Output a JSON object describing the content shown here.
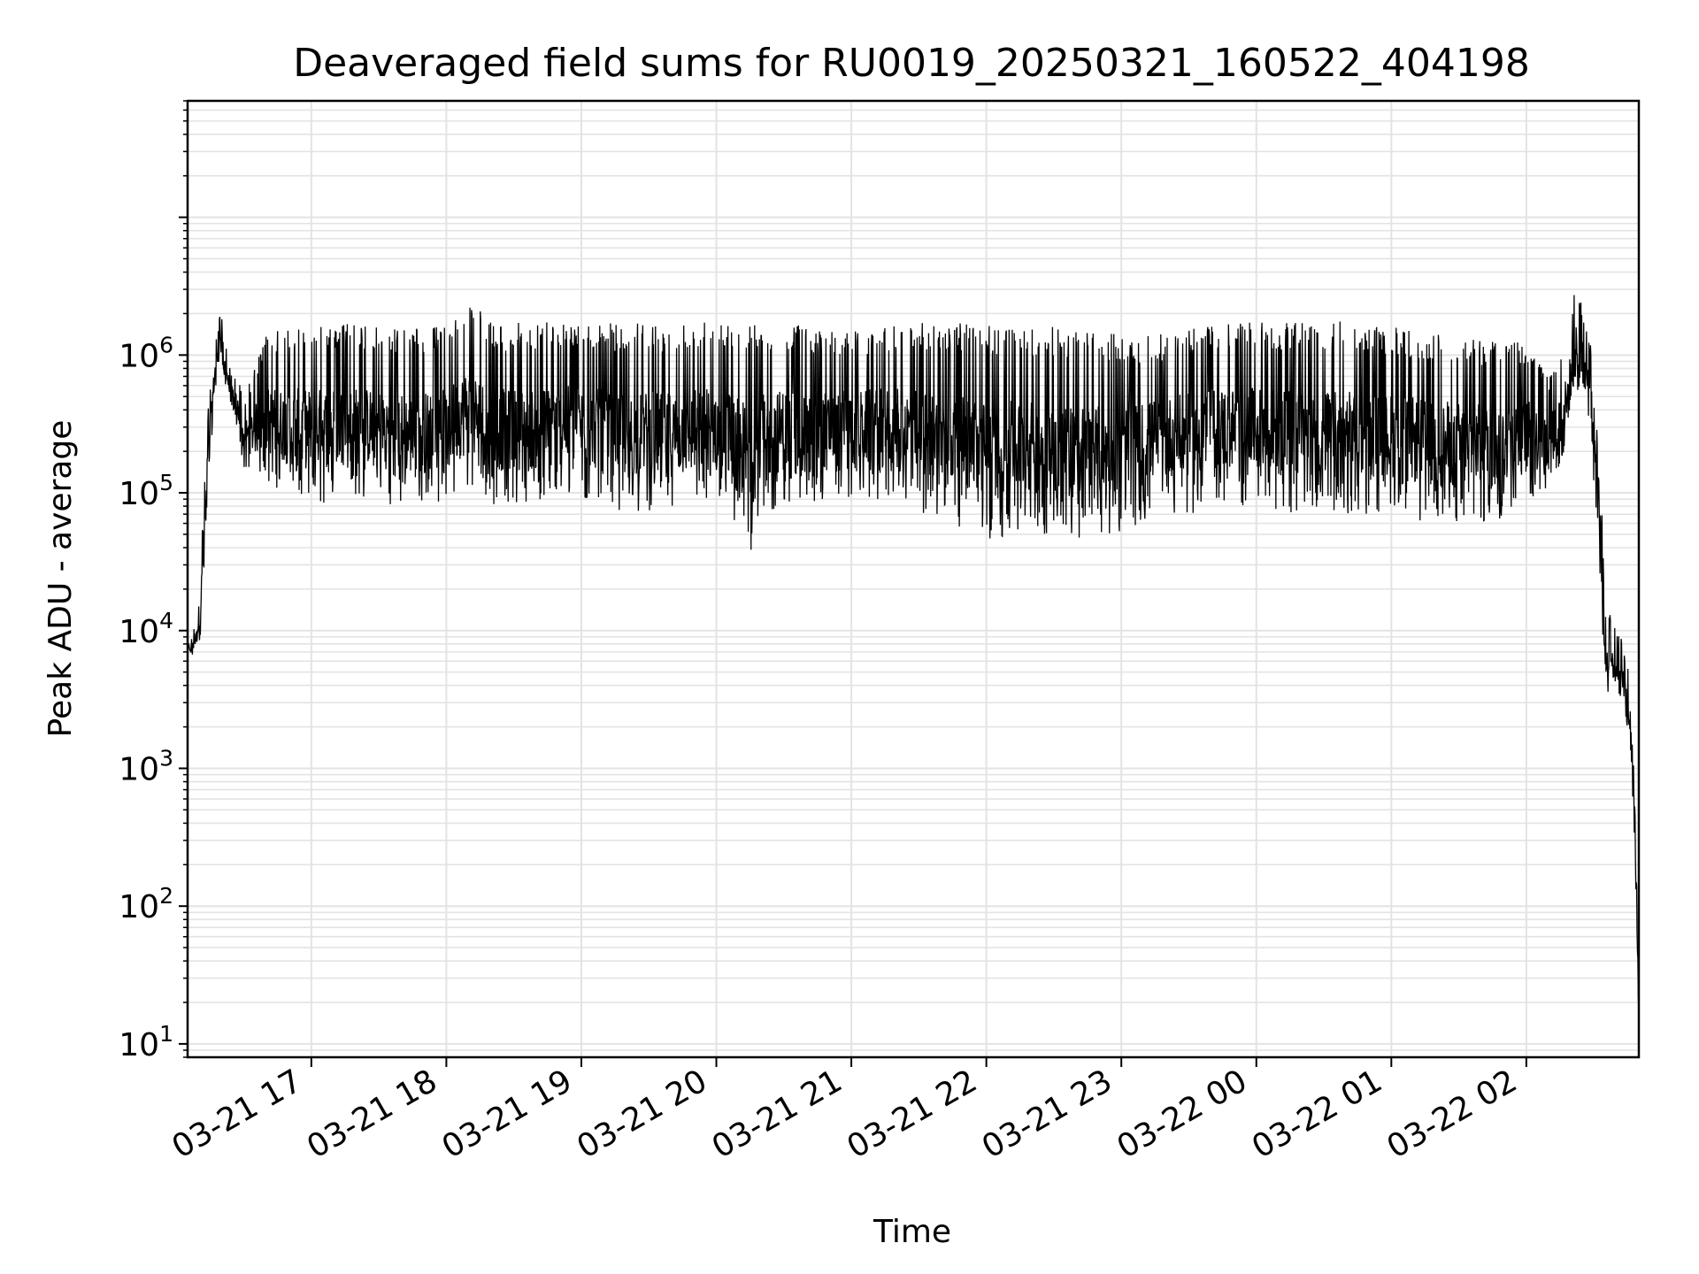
{
  "chart_data": {
    "type": "line",
    "title": "Deaveraged field sums for RU0019_20250321_160522_404198",
    "xlabel": "Time",
    "ylabel": "Peak ADU - average",
    "yscale": "log",
    "ylim": [
      8,
      70000000
    ],
    "xlim": [
      "2025-03-21 16:05",
      "2025-03-22 02:50"
    ],
    "grid": true,
    "line_color": "#000000",
    "grid_color": "#e3e3e3",
    "x_ticks": [
      {
        "value": "2025-03-21 17:00",
        "label": "03-21 17"
      },
      {
        "value": "2025-03-21 18:00",
        "label": "03-21 18"
      },
      {
        "value": "2025-03-21 19:00",
        "label": "03-21 19"
      },
      {
        "value": "2025-03-21 20:00",
        "label": "03-21 20"
      },
      {
        "value": "2025-03-21 21:00",
        "label": "03-21 21"
      },
      {
        "value": "2025-03-21 22:00",
        "label": "03-21 22"
      },
      {
        "value": "2025-03-21 23:00",
        "label": "03-21 23"
      },
      {
        "value": "2025-03-22 00:00",
        "label": "03-22 00"
      },
      {
        "value": "2025-03-22 01:00",
        "label": "03-22 01"
      },
      {
        "value": "2025-03-22 02:00",
        "label": "03-22 02"
      }
    ],
    "y_ticks": [
      {
        "value": 10,
        "base": "10",
        "exp": "1"
      },
      {
        "value": 100,
        "base": "10",
        "exp": "2"
      },
      {
        "value": 1000,
        "base": "10",
        "exp": "3"
      },
      {
        "value": 10000,
        "base": "10",
        "exp": "4"
      },
      {
        "value": 100000,
        "base": "10",
        "exp": "5"
      },
      {
        "value": 1000000,
        "base": "10",
        "exp": "6"
      }
    ],
    "series": [
      {
        "type": "envelope",
        "x": [
          "2025-03-21 16:05",
          "2025-03-21 16:07",
          "2025-03-21 16:09",
          "2025-03-21 16:11",
          "2025-03-21 16:14",
          "2025-03-21 16:17",
          "2025-03-21 16:20",
          "2025-03-21 16:21",
          "2025-03-21 16:24",
          "2025-03-21 16:27",
          "2025-03-21 16:30",
          "2025-03-21 16:40",
          "2025-03-21 16:50",
          "2025-03-21 17:00",
          "2025-03-21 17:15",
          "2025-03-21 17:30",
          "2025-03-21 17:45",
          "2025-03-21 18:00",
          "2025-03-21 18:10",
          "2025-03-21 18:20",
          "2025-03-21 18:30",
          "2025-03-21 18:45",
          "2025-03-21 19:00",
          "2025-03-21 19:15",
          "2025-03-21 19:30",
          "2025-03-21 19:45",
          "2025-03-21 20:00",
          "2025-03-21 20:10",
          "2025-03-21 20:15",
          "2025-03-21 20:20",
          "2025-03-21 20:30",
          "2025-03-21 20:45",
          "2025-03-21 21:00",
          "2025-03-21 21:15",
          "2025-03-21 21:30",
          "2025-03-21 21:45",
          "2025-03-21 22:00",
          "2025-03-21 22:15",
          "2025-03-21 22:30",
          "2025-03-21 22:45",
          "2025-03-21 23:00",
          "2025-03-21 23:15",
          "2025-03-21 23:30",
          "2025-03-21 23:45",
          "2025-03-22 00:00",
          "2025-03-22 00:15",
          "2025-03-22 00:30",
          "2025-03-22 00:45",
          "2025-03-22 01:00",
          "2025-03-22 01:15",
          "2025-03-22 01:30",
          "2025-03-22 01:45",
          "2025-03-22 02:00",
          "2025-03-22 02:10",
          "2025-03-22 02:18",
          "2025-03-22 02:22",
          "2025-03-22 02:27",
          "2025-03-22 02:32",
          "2025-03-22 02:35",
          "2025-03-22 02:38",
          "2025-03-22 02:42",
          "2025-03-22 02:46",
          "2025-03-22 02:48",
          "2025-03-22 02:50"
        ],
        "high": [
          8000,
          9000,
          13000,
          40000,
          400000,
          1200000,
          2200000,
          1500000,
          800000,
          700000,
          500000,
          1400000,
          1600000,
          1700000,
          1700000,
          1600000,
          1600000,
          1600000,
          2600000,
          1700000,
          1700000,
          1800000,
          1700000,
          1700000,
          1700000,
          1700000,
          1900000,
          1800000,
          1700000,
          1700000,
          1700000,
          1600000,
          1500000,
          1600000,
          1800000,
          1700000,
          1700000,
          1600000,
          1600000,
          1500000,
          1400000,
          1400000,
          1600000,
          1800000,
          1700000,
          1800000,
          1800000,
          1700000,
          1600000,
          1500000,
          1400000,
          1300000,
          1300000,
          700000,
          1400000,
          3700000,
          1600000,
          600000,
          13000,
          13000,
          9000,
          5000,
          2000,
          15
        ],
        "low": [
          7000,
          6500,
          7000,
          9000,
          100000,
          500000,
          1000000,
          700000,
          400000,
          300000,
          150000,
          120000,
          90000,
          80000,
          90000,
          90000,
          70000,
          90000,
          100000,
          80000,
          80000,
          80000,
          90000,
          70000,
          70000,
          70000,
          80000,
          50000,
          35000,
          60000,
          80000,
          80000,
          90000,
          90000,
          70000,
          60000,
          45000,
          50000,
          50000,
          45000,
          50000,
          70000,
          70000,
          80000,
          80000,
          70000,
          70000,
          70000,
          70000,
          60000,
          60000,
          60000,
          80000,
          100000,
          200000,
          500000,
          400000,
          50000,
          3000,
          4000,
          3000,
          1500,
          300,
          15
        ]
      }
    ]
  }
}
